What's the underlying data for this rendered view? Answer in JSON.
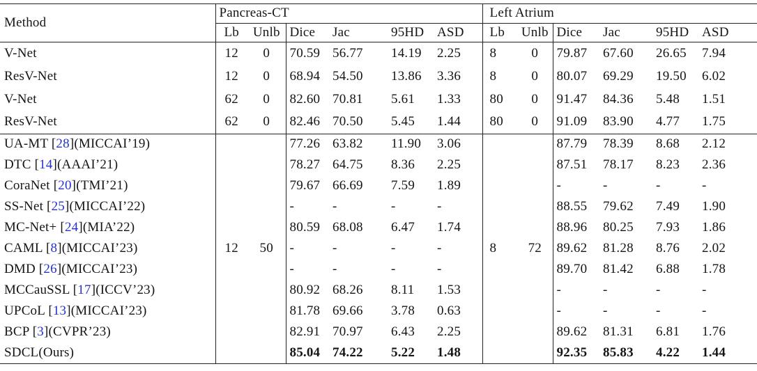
{
  "colors": {
    "citation": "#2333cc",
    "text": "#151515",
    "rule": "#222222",
    "background": "#ffffff"
  },
  "header": {
    "method": "Method",
    "groups": [
      {
        "label": "Pancreas-CT",
        "sub": [
          "Lb",
          "Unlb",
          "Dice",
          "Jac",
          "95HD",
          "ASD"
        ]
      },
      {
        "label": "Left Atrium",
        "sub": [
          "Lb",
          "Unlb",
          "Dice",
          "Jac",
          "95HD",
          "ASD"
        ]
      }
    ]
  },
  "supervised_rows": [
    {
      "method": {
        "text": "V-Net",
        "ref": null,
        "venue": ""
      },
      "p_lb": "12",
      "p_unlb": "0",
      "p": [
        "70.59",
        "56.77",
        "14.19",
        "2.25"
      ],
      "la_lb": "8",
      "la_unlb": "0",
      "la": [
        "79.87",
        "67.60",
        "26.65",
        "7.94"
      ],
      "bold": false
    },
    {
      "method": {
        "text": "ResV-Net",
        "ref": null,
        "venue": ""
      },
      "p_lb": "12",
      "p_unlb": "0",
      "p": [
        "68.94",
        "54.50",
        "13.86",
        "3.36"
      ],
      "la_lb": "8",
      "la_unlb": "0",
      "la": [
        "80.07",
        "69.29",
        "19.50",
        "6.02"
      ],
      "bold": false
    },
    {
      "method": {
        "text": "V-Net",
        "ref": null,
        "venue": ""
      },
      "p_lb": "62",
      "p_unlb": "0",
      "p": [
        "82.60",
        "70.81",
        "5.61",
        "1.33"
      ],
      "la_lb": "80",
      "la_unlb": "0",
      "la": [
        "91.47",
        "84.36",
        "5.48",
        "1.51"
      ],
      "bold": false
    },
    {
      "method": {
        "text": "ResV-Net",
        "ref": null,
        "venue": ""
      },
      "p_lb": "62",
      "p_unlb": "0",
      "p": [
        "82.46",
        "70.50",
        "5.45",
        "1.44"
      ],
      "la_lb": "80",
      "la_unlb": "0",
      "la": [
        "91.09",
        "83.90",
        "4.77",
        "1.75"
      ],
      "bold": false
    }
  ],
  "semi_counts": {
    "p_lb": "12",
    "p_unlb": "50",
    "la_lb": "8",
    "la_unlb": "72"
  },
  "semi_rows": [
    {
      "method": {
        "text": "UA-MT ",
        "ref": "28",
        "venue": "(MICCAI’19)"
      },
      "p": [
        "77.26",
        "63.82",
        "11.90",
        "3.06"
      ],
      "la": [
        "87.79",
        "78.39",
        "8.68",
        "2.12"
      ],
      "bold": false
    },
    {
      "method": {
        "text": "DTC ",
        "ref": "14",
        "venue": "(AAAI’21)"
      },
      "p": [
        "78.27",
        "64.75",
        "8.36",
        "2.25"
      ],
      "la": [
        "87.51",
        "78.17",
        "8.23",
        "2.36"
      ],
      "bold": false
    },
    {
      "method": {
        "text": "CoraNet ",
        "ref": "20",
        "venue": "(TMI’21)"
      },
      "p": [
        "79.67",
        "66.69",
        "7.59",
        "1.89"
      ],
      "la": [
        "-",
        "-",
        "-",
        "-"
      ],
      "bold": false
    },
    {
      "method": {
        "text": "SS-Net ",
        "ref": "25",
        "venue": "(MICCAI’22)"
      },
      "p": [
        "-",
        "-",
        "-",
        "-"
      ],
      "la": [
        "88.55",
        "79.62",
        "7.49",
        "1.90"
      ],
      "bold": false
    },
    {
      "method": {
        "text": "MC-Net+ ",
        "ref": "24",
        "venue": "(MIA’22)"
      },
      "p": [
        "80.59",
        "68.08",
        "6.47",
        "1.74"
      ],
      "la": [
        "88.96",
        "80.25",
        "7.93",
        "1.86"
      ],
      "bold": false
    },
    {
      "method": {
        "text": "CAML ",
        "ref": "8",
        "venue": "(MICCAI’23)"
      },
      "p": [
        "-",
        "-",
        "-",
        "-"
      ],
      "la": [
        "89.62",
        "81.28",
        "8.76",
        "2.02"
      ],
      "bold": false
    },
    {
      "method": {
        "text": "DMD ",
        "ref": "26",
        "venue": "(MICCAI’23)"
      },
      "p": [
        "-",
        "-",
        "-",
        "-"
      ],
      "la": [
        "89.70",
        "81.42",
        "6.88",
        "1.78"
      ],
      "bold": false
    },
    {
      "method": {
        "text": "MCCauSSL ",
        "ref": "17",
        "venue": "(ICCV’23)"
      },
      "p": [
        "80.92",
        "68.26",
        "8.11",
        "1.53"
      ],
      "la": [
        "-",
        "-",
        "-",
        "-"
      ],
      "bold": false
    },
    {
      "method": {
        "text": "UPCoL ",
        "ref": "13",
        "venue": "(MICCAI’23)"
      },
      "p": [
        "81.78",
        "69.66",
        "3.78",
        "0.63"
      ],
      "la": [
        "-",
        "-",
        "-",
        "-"
      ],
      "bold": false
    },
    {
      "method": {
        "text": "BCP ",
        "ref": "3",
        "venue": "(CVPR’23)"
      },
      "p": [
        "82.91",
        "70.97",
        "6.43",
        "2.25"
      ],
      "la": [
        "89.62",
        "81.31",
        "6.81",
        "1.76"
      ],
      "bold": false
    },
    {
      "method": {
        "text": "SDCL(Ours)",
        "ref": null,
        "venue": ""
      },
      "p": [
        "85.04",
        "74.22",
        "5.22",
        "1.48"
      ],
      "la": [
        "92.35",
        "85.83",
        "4.22",
        "1.44"
      ],
      "bold": true
    }
  ]
}
